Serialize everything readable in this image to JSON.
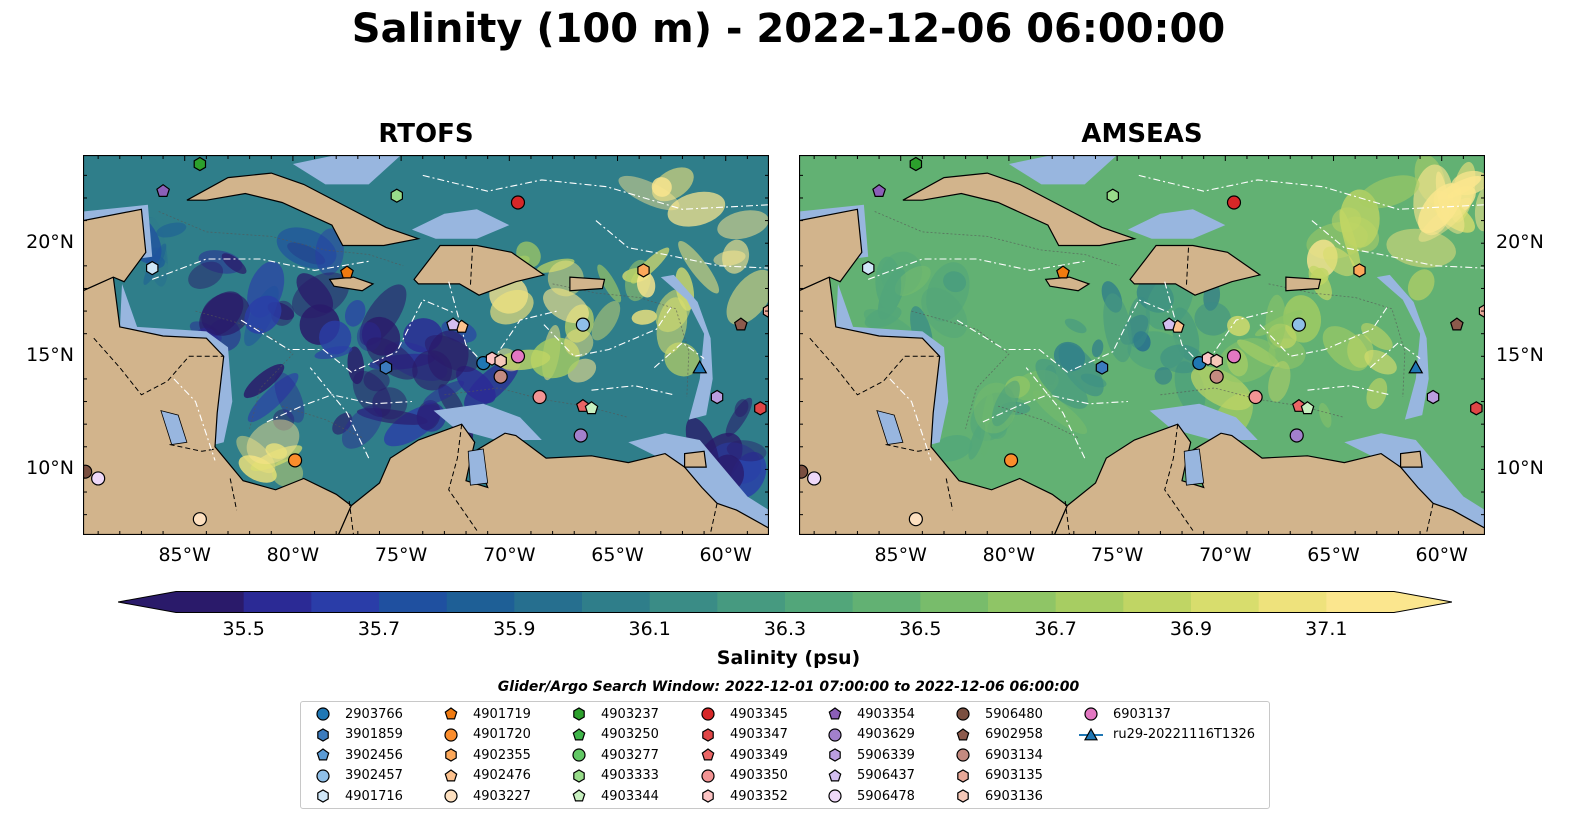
{
  "title": "Salinity (100 m) - 2022-12-06 06:00:00",
  "panels": [
    {
      "title": "RTOFS",
      "model": "rtofs"
    },
    {
      "title": "AMSEAS",
      "model": "amseas"
    }
  ],
  "axes": {
    "x_ticks": [
      "85°W",
      "80°W",
      "75°W",
      "70°W",
      "65°W",
      "60°W"
    ],
    "y_ticks": [
      "20°N",
      "15°N",
      "10°N"
    ],
    "lon_range": [
      -89.7,
      -58.0
    ],
    "lat_range": [
      7.1,
      23.9
    ],
    "lon_tick_values": [
      -85,
      -80,
      -75,
      -70,
      -65,
      -60
    ],
    "lat_tick_values": [
      20,
      15,
      10
    ]
  },
  "colorbar": {
    "label": "Salinity (psu)",
    "ticks": [
      "35.5",
      "35.7",
      "35.9",
      "36.1",
      "36.3",
      "36.5",
      "36.7",
      "36.9",
      "37.1"
    ],
    "min": 35.4,
    "max": 37.2,
    "extend": "both",
    "colors": [
      "#2a1a6a",
      "#2b2a95",
      "#2a3da8",
      "#1f50a0",
      "#1e5f96",
      "#266f8f",
      "#2f7e8a",
      "#3a8c86",
      "#469a80",
      "#52a67a",
      "#62b173",
      "#78bc6b",
      "#8fc566",
      "#a7cd62",
      "#c0d564",
      "#d8dd6d",
      "#eee27c",
      "#fbe68e"
    ]
  },
  "colors": {
    "land": "#d2b48c",
    "shallow_water": "#98b6df",
    "deep_fill": "#2a1a6a"
  },
  "search_window": "Glider/Argo Search Window: 2022-12-01 07:00:00 to 2022-12-06 06:00:00",
  "legend": [
    {
      "label": "2903766",
      "marker": "circle",
      "color": "#1f77b4"
    },
    {
      "label": "3901859",
      "marker": "hexagon",
      "color": "#3b7bbd"
    },
    {
      "label": "3902456",
      "marker": "pentagon",
      "color": "#5b9bd5"
    },
    {
      "label": "3902457",
      "marker": "circle",
      "color": "#8fbfe8"
    },
    {
      "label": "4901716",
      "marker": "hexagon",
      "color": "#cfe6f7"
    },
    {
      "label": "4901719",
      "marker": "pentagon",
      "color": "#f07a10"
    },
    {
      "label": "4901720",
      "marker": "circle",
      "color": "#fb8d2c"
    },
    {
      "label": "4902355",
      "marker": "hexagon",
      "color": "#fca85a"
    },
    {
      "label": "4902476",
      "marker": "pentagon",
      "color": "#fdc28e"
    },
    {
      "label": "4903227",
      "marker": "circle",
      "color": "#fde0c0"
    },
    {
      "label": "4903237",
      "marker": "hexagon",
      "color": "#2ca02c"
    },
    {
      "label": "4903250",
      "marker": "pentagon",
      "color": "#3fb54a"
    },
    {
      "label": "4903277",
      "marker": "circle",
      "color": "#62c865"
    },
    {
      "label": "4903333",
      "marker": "hexagon",
      "color": "#98dc8a"
    },
    {
      "label": "4903344",
      "marker": "pentagon",
      "color": "#c8f0c0"
    },
    {
      "label": "4903345",
      "marker": "circle",
      "color": "#d62728"
    },
    {
      "label": "4903347",
      "marker": "hexagon",
      "color": "#e04546"
    },
    {
      "label": "4903349",
      "marker": "pentagon",
      "color": "#ea6565"
    },
    {
      "label": "4903350",
      "marker": "circle",
      "color": "#f39494"
    },
    {
      "label": "4903352",
      "marker": "hexagon",
      "color": "#fcc4c4"
    },
    {
      "label": "4903354",
      "marker": "pentagon",
      "color": "#8b5fb8"
    },
    {
      "label": "4903629",
      "marker": "circle",
      "color": "#a280cc"
    },
    {
      "label": "5906339",
      "marker": "hexagon",
      "color": "#bb9ee0"
    },
    {
      "label": "5906437",
      "marker": "pentagon",
      "color": "#d4bff0"
    },
    {
      "label": "5906478",
      "marker": "circle",
      "color": "#eed8f8"
    },
    {
      "label": "5906480",
      "marker": "circle",
      "color": "#7a4f40"
    },
    {
      "label": "6902958",
      "marker": "pentagon",
      "color": "#8c5a4c"
    },
    {
      "label": "6903134",
      "marker": "circle",
      "color": "#c48a80"
    },
    {
      "label": "6903135",
      "marker": "hexagon",
      "color": "#e8a898"
    },
    {
      "label": "6903136",
      "marker": "hexagon",
      "color": "#f5c8b8"
    },
    {
      "label": "6903137",
      "marker": "circle",
      "color": "#e377c2"
    },
    {
      "label": "ru29-20221116T1326",
      "marker": "triangle-line",
      "color": "#1f77b4"
    }
  ],
  "stations": [
    {
      "id": "4903237",
      "lon": -84.3,
      "lat": 23.5
    },
    {
      "id": "4903354",
      "lon": -86.0,
      "lat": 22.3
    },
    {
      "id": "4903333",
      "lon": -75.2,
      "lat": 22.1
    },
    {
      "id": "4903345",
      "lon": -69.6,
      "lat": 21.8
    },
    {
      "id": "4901716",
      "lon": -86.5,
      "lat": 18.9
    },
    {
      "id": "4901719",
      "lon": -77.5,
      "lat": 18.7
    },
    {
      "id": "4902355",
      "lon": -63.8,
      "lat": 18.8
    },
    {
      "id": "4902476",
      "lon": -72.2,
      "lat": 16.3
    },
    {
      "id": "5906437",
      "lon": -72.6,
      "lat": 16.4
    },
    {
      "id": "3902457",
      "lon": -66.6,
      "lat": 16.4
    },
    {
      "id": "6902958",
      "lon": -59.3,
      "lat": 16.4
    },
    {
      "id": "6903135",
      "lon": -58.0,
      "lat": 17.0
    },
    {
      "id": "3901859",
      "lon": -75.7,
      "lat": 14.5
    },
    {
      "id": "2903766",
      "lon": -71.2,
      "lat": 14.7
    },
    {
      "id": "4903352",
      "lon": -70.8,
      "lat": 14.9
    },
    {
      "id": "6903136",
      "lon": -70.4,
      "lat": 14.8
    },
    {
      "id": "6903137",
      "lon": -69.6,
      "lat": 15.0
    },
    {
      "id": "6903134",
      "lon": -70.4,
      "lat": 14.1
    },
    {
      "id": "4903350",
      "lon": -68.6,
      "lat": 13.2
    },
    {
      "id": "ru29-20221116T1326",
      "lon": -61.2,
      "lat": 14.5
    },
    {
      "id": "4903349",
      "lon": -66.6,
      "lat": 12.8
    },
    {
      "id": "4903344",
      "lon": -66.2,
      "lat": 12.7
    },
    {
      "id": "4903629",
      "lon": -66.7,
      "lat": 11.5
    },
    {
      "id": "4903347",
      "lon": -58.4,
      "lat": 12.7
    },
    {
      "id": "5906339",
      "lon": -60.4,
      "lat": 13.2
    },
    {
      "id": "4901720",
      "lon": -79.9,
      "lat": 10.4
    },
    {
      "id": "5906480",
      "lon": -89.6,
      "lat": 9.9
    },
    {
      "id": "5906478",
      "lon": -89.0,
      "lat": 9.6
    },
    {
      "id": "4903227",
      "lon": -84.3,
      "lat": 7.8
    }
  ]
}
